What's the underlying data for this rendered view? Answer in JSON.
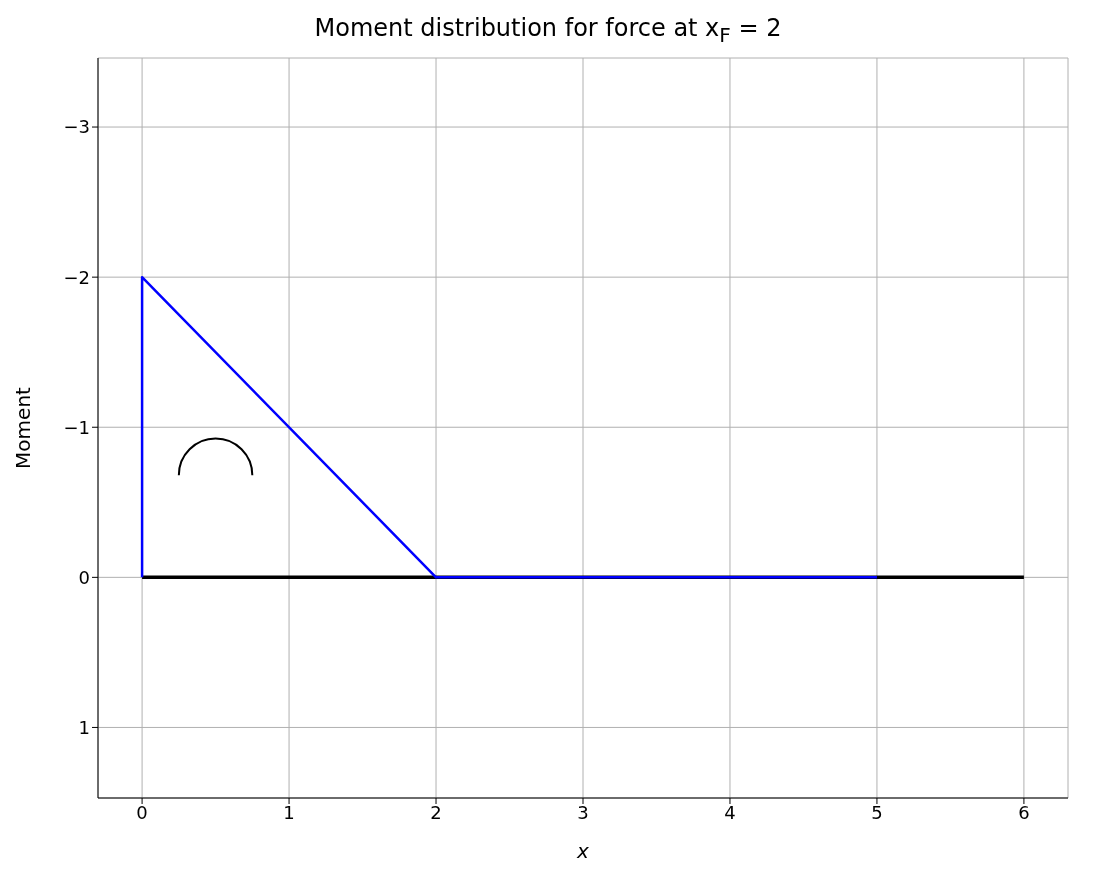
{
  "chart_data": {
    "type": "line",
    "title": "Moment distribution for force at x$_{F}$ = 2",
    "xlabel": "x",
    "ylabel": "Moment",
    "series": [
      {
        "color": "#000000",
        "x": [
          0,
          6
        ],
        "values": [
          0,
          0
        ]
      },
      {
        "color": "#0000ff",
        "x": [
          0,
          0,
          2,
          5
        ],
        "values": [
          0,
          -2,
          0,
          0
        ]
      }
    ],
    "xlim": [
      -0.3,
      6.3
    ],
    "xticks": [
      0,
      1,
      2,
      3,
      4,
      5,
      6
    ],
    "ylim": [
      1.47,
      -3.46
    ],
    "yticks": [
      -3,
      -2,
      -1,
      0,
      1
    ],
    "grid": true,
    "marker": "none",
    "line_style": "solid"
  }
}
